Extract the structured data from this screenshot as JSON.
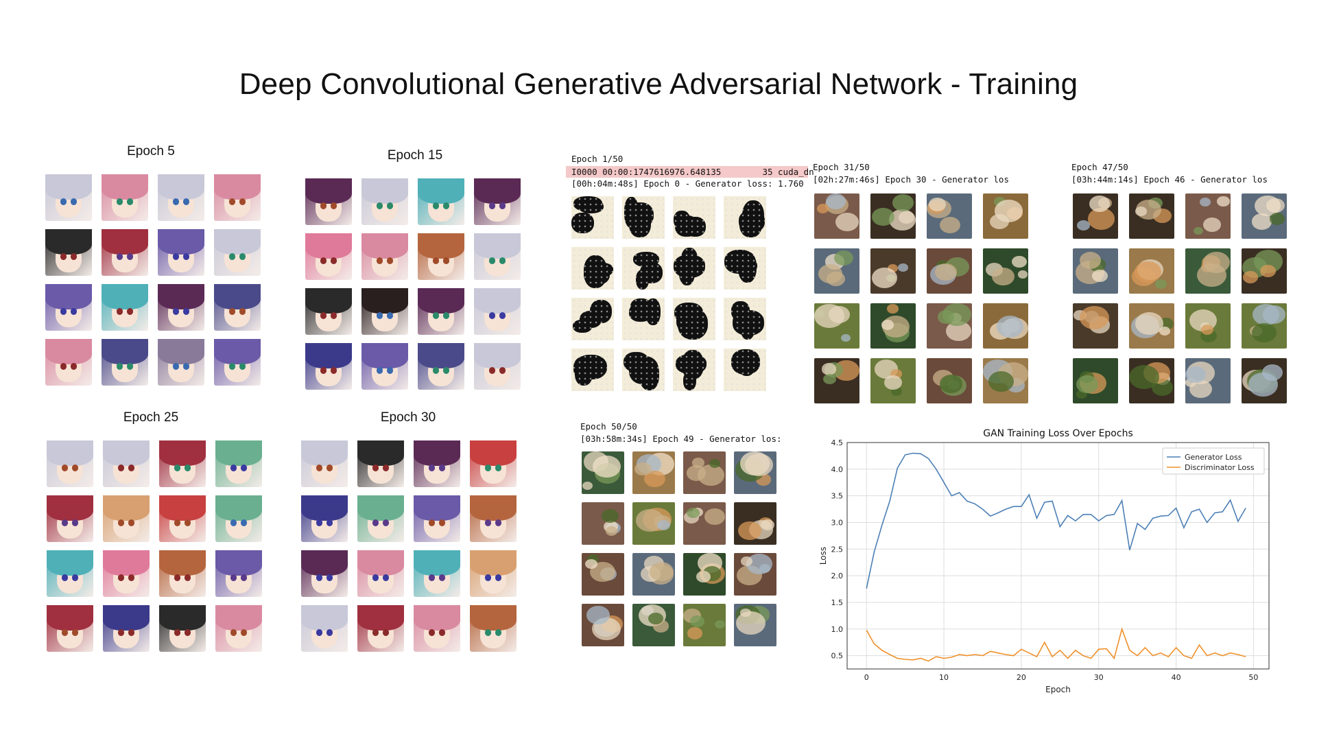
{
  "title": "Deep Convolutional Generative Adversarial Network - Training",
  "anime_panels": [
    {
      "label": "Epoch 5"
    },
    {
      "label": "Epoch 15"
    },
    {
      "label": "Epoch 25"
    },
    {
      "label": "Epoch 30"
    }
  ],
  "log_panels": [
    {
      "epoch": "Epoch 1/50",
      "line1": "I0000 00:00:1747616976.648135        35 cuda_dn",
      "line2": "[00h:04m:48s] Epoch 0 - Generator loss: 1.760"
    },
    {
      "epoch": "Epoch 31/50",
      "line1": "[02h:27m:46s] Epoch 30 - Generator los"
    },
    {
      "epoch": "Epoch 47/50",
      "line1": "[03h:44m:14s] Epoch 46 - Generator los"
    },
    {
      "epoch": "Epoch 50/50",
      "line1": "[03h:58m:34s] Epoch 49 - Generator los:"
    }
  ],
  "colors": {
    "generator": "#4c7fb5",
    "discriminator": "#f0902a",
    "grid": "#dddddd",
    "highlight": "#f5c9c9"
  },
  "chart_data": {
    "type": "line",
    "title": "GAN Training Loss Over Epochs",
    "xlabel": "Epoch",
    "ylabel": "Loss",
    "xlim": [
      -2.5,
      52
    ],
    "ylim": [
      0.25,
      4.5
    ],
    "xticks": [
      0,
      10,
      20,
      30,
      40,
      50
    ],
    "yticks": [
      0.5,
      1.0,
      1.5,
      2.0,
      2.5,
      3.0,
      3.5,
      4.0,
      4.5
    ],
    "grid": true,
    "legend_position": "top-right",
    "series": [
      {
        "name": "Generator Loss",
        "x": [
          0,
          1,
          2,
          3,
          4,
          5,
          6,
          7,
          8,
          9,
          10,
          11,
          12,
          13,
          14,
          15,
          16,
          17,
          18,
          19,
          20,
          21,
          22,
          23,
          24,
          25,
          26,
          27,
          28,
          29,
          30,
          31,
          32,
          33,
          34,
          35,
          36,
          37,
          38,
          39,
          40,
          41,
          42,
          43,
          44,
          45,
          46,
          47,
          48,
          49
        ],
        "values": [
          1.76,
          2.45,
          2.95,
          3.4,
          4.02,
          4.27,
          4.3,
          4.29,
          4.2,
          4.0,
          3.75,
          3.5,
          3.56,
          3.4,
          3.35,
          3.25,
          3.12,
          3.18,
          3.25,
          3.3,
          3.3,
          3.52,
          3.08,
          3.38,
          3.4,
          2.92,
          3.13,
          3.03,
          3.15,
          3.15,
          3.03,
          3.13,
          3.15,
          3.41,
          2.48,
          2.98,
          2.87,
          3.08,
          3.12,
          3.13,
          3.27,
          2.9,
          3.2,
          3.25,
          3.0,
          3.18,
          3.2,
          3.42,
          3.02,
          3.27
        ]
      },
      {
        "name": "Discriminator Loss",
        "x": [
          0,
          1,
          2,
          3,
          4,
          5,
          6,
          7,
          8,
          9,
          10,
          11,
          12,
          13,
          14,
          15,
          16,
          17,
          18,
          19,
          20,
          21,
          22,
          23,
          24,
          25,
          26,
          27,
          28,
          29,
          30,
          31,
          32,
          33,
          34,
          35,
          36,
          37,
          38,
          39,
          40,
          41,
          42,
          43,
          44,
          45,
          46,
          47,
          48,
          49
        ],
        "values": [
          0.98,
          0.72,
          0.6,
          0.52,
          0.45,
          0.43,
          0.42,
          0.45,
          0.4,
          0.48,
          0.45,
          0.47,
          0.52,
          0.5,
          0.52,
          0.5,
          0.58,
          0.55,
          0.52,
          0.5,
          0.62,
          0.55,
          0.48,
          0.75,
          0.48,
          0.6,
          0.45,
          0.6,
          0.5,
          0.45,
          0.62,
          0.63,
          0.45,
          1.0,
          0.6,
          0.5,
          0.65,
          0.5,
          0.55,
          0.48,
          0.65,
          0.5,
          0.45,
          0.7,
          0.5,
          0.55,
          0.5,
          0.55,
          0.52,
          0.48
        ]
      }
    ]
  }
}
